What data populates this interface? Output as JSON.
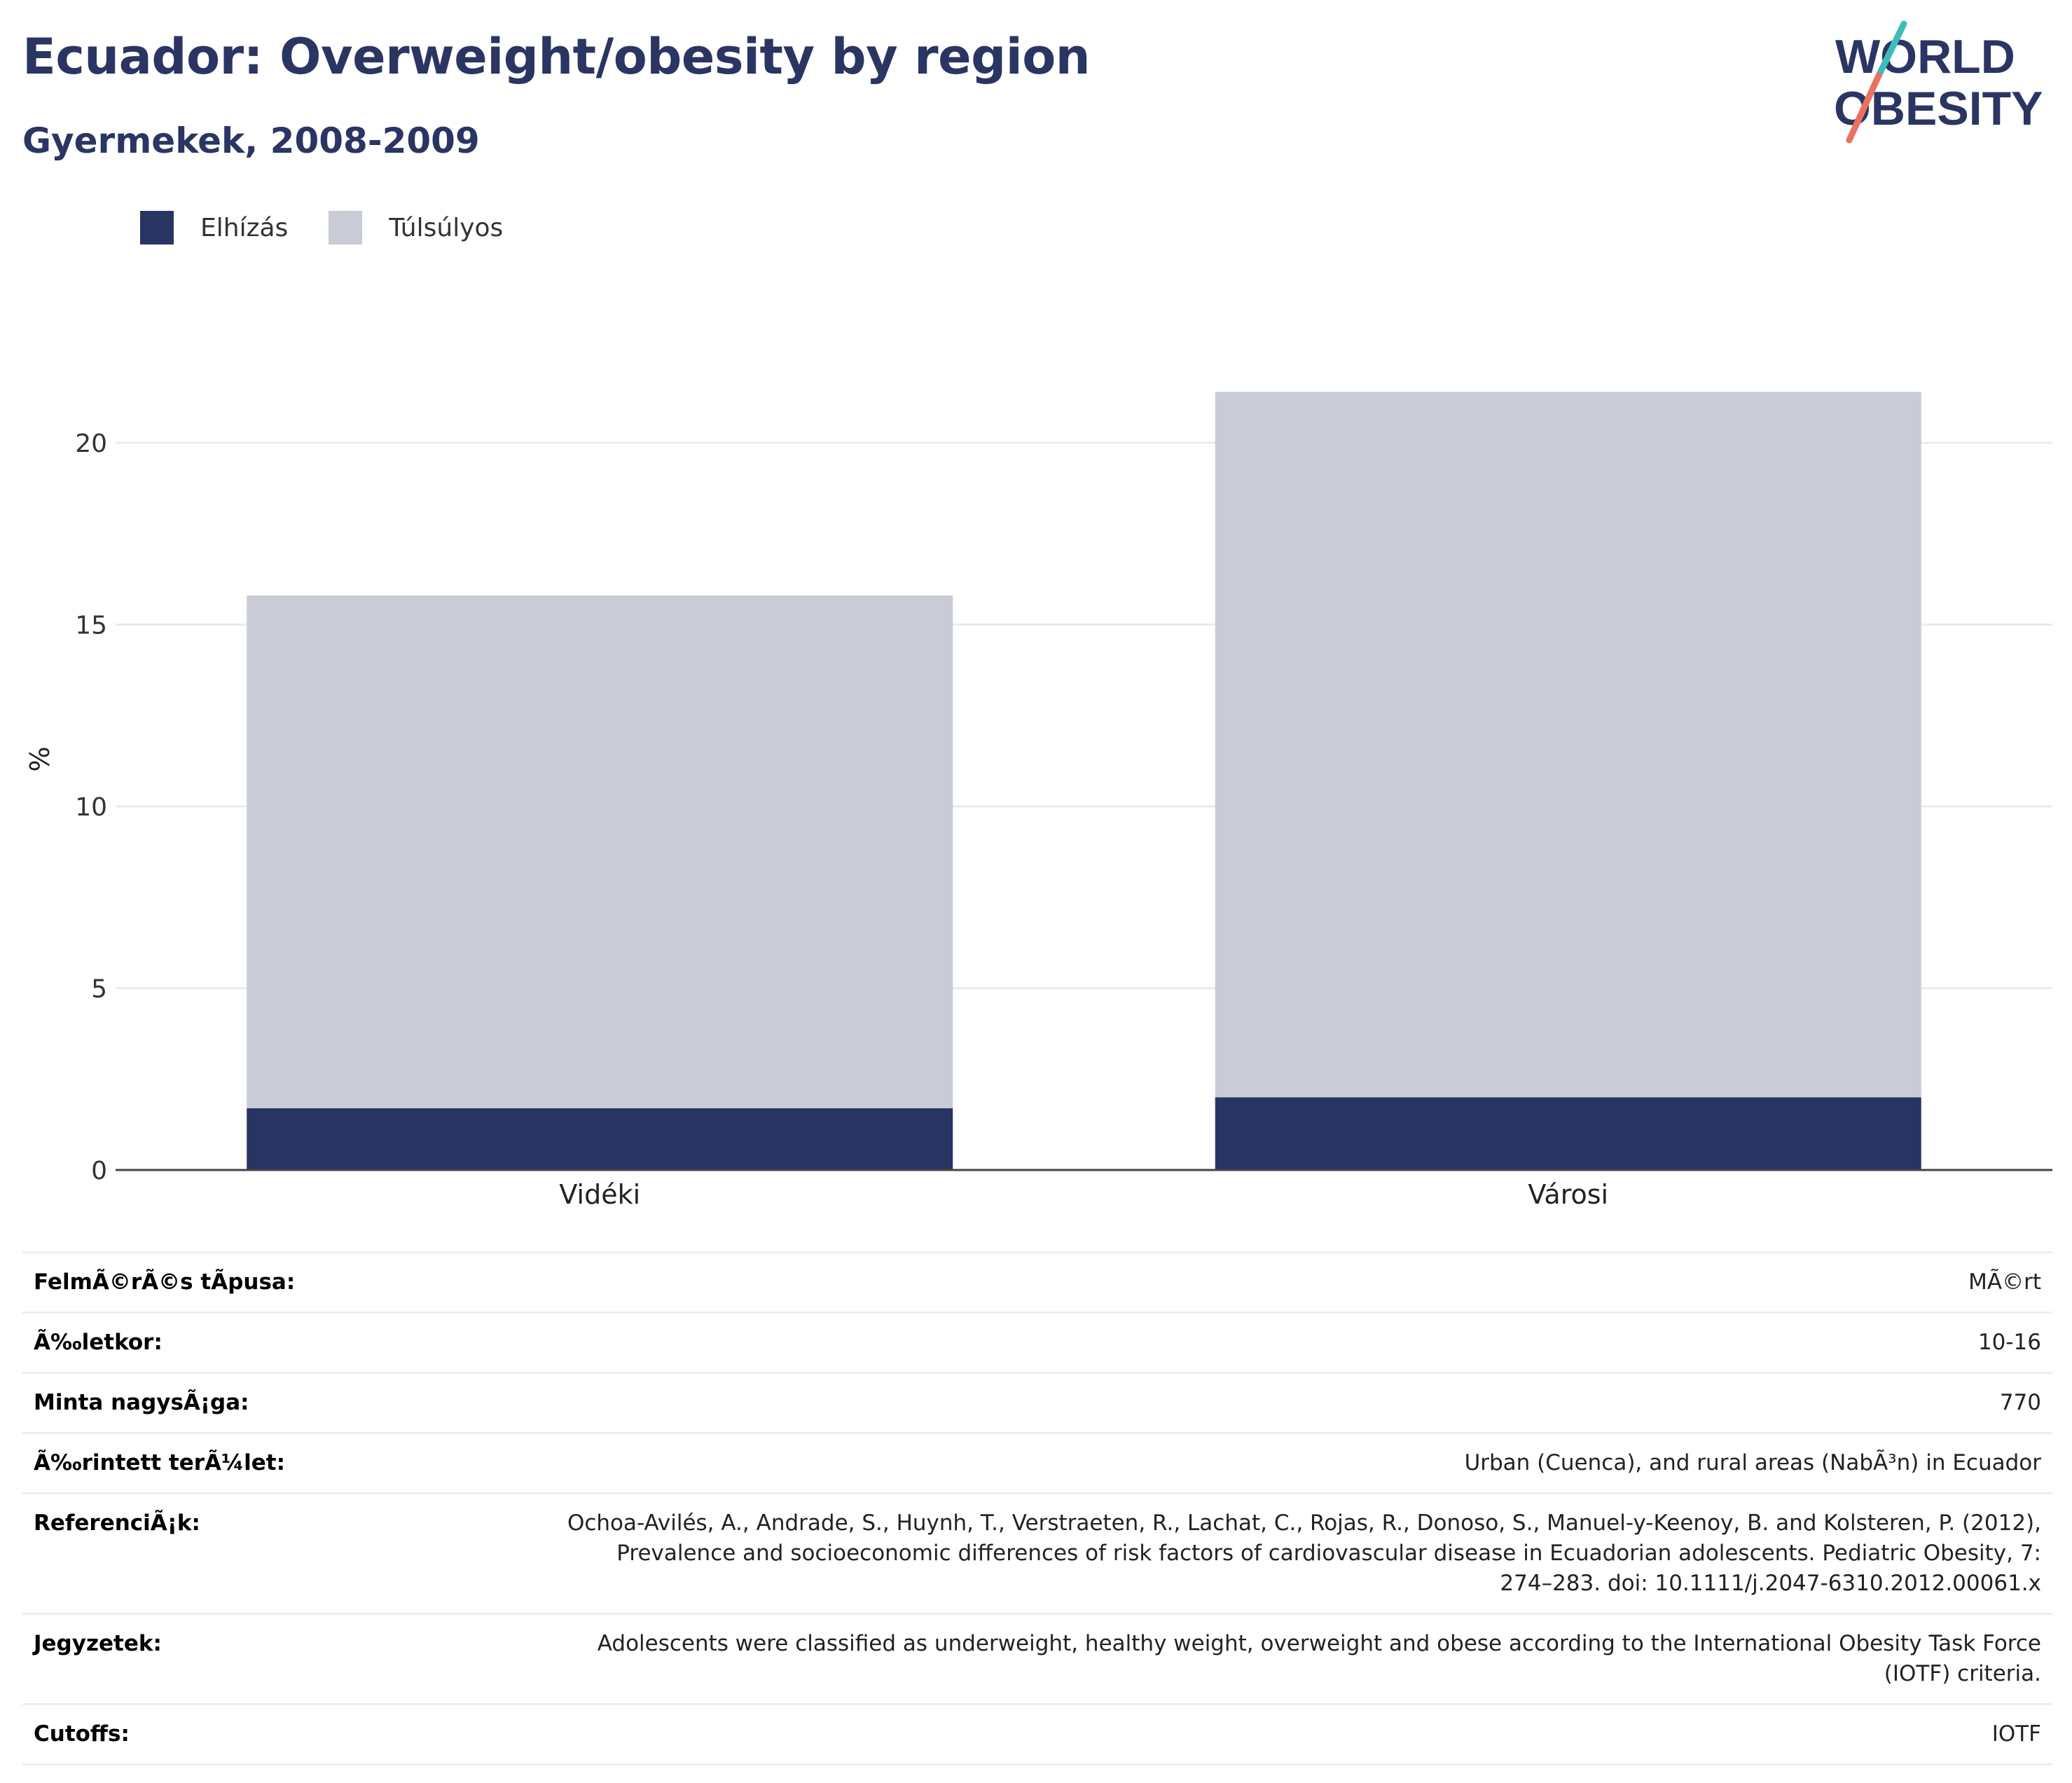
{
  "header": {
    "title": "Ecuador: Overweight/obesity by region",
    "subtitle": "Gyermekek, 2008-2009"
  },
  "logo": {
    "line1": "WORLD",
    "line2": "OBESITY"
  },
  "colors": {
    "obese": "#283562",
    "overweight": "#c9cbd7",
    "title": "#2a3563",
    "logo_teal": "#3dbdb9",
    "logo_coral": "#e8715f"
  },
  "legend": [
    {
      "label": "Elhízás",
      "color": "#283562"
    },
    {
      "label": "Túlsúlyos",
      "color": "#c9cbd7"
    }
  ],
  "chart_data": {
    "type": "bar",
    "stacked": true,
    "categories": [
      "Vidéki",
      "Városi"
    ],
    "series": [
      {
        "name": "Elhízás",
        "values": [
          1.7,
          2.0
        ]
      },
      {
        "name": "Túlsúlyos",
        "values": [
          14.1,
          19.4
        ]
      }
    ],
    "ylabel": "%",
    "yticks": [
      0,
      5,
      10,
      15,
      20
    ],
    "ylim": [
      0,
      22.6
    ],
    "grid": true,
    "legend_position": "top-left"
  },
  "meta": [
    {
      "key": "FelmÃ©rÃ©s tÃpusa:",
      "value": [
        "MÃ©rt"
      ]
    },
    {
      "key": "Ã‰letkor:",
      "value": [
        "10-16"
      ]
    },
    {
      "key": "Minta nagysÃ¡ga:",
      "value": [
        "770"
      ]
    },
    {
      "key": "Ã‰rintett terÃ¼let:",
      "value": [
        "Urban (Cuenca), and rural areas (NabÃ³n) in Ecuador"
      ]
    },
    {
      "key": "ReferenciÃ¡k:",
      "value": [
        "Ochoa-Avilés, A., Andrade, S., Huynh, T., Verstraeten, R., Lachat, C., Rojas, R., Donoso, S., Manuel-y-Keenoy, B. and Kolsteren, P. (2012),",
        "Prevalence and socioeconomic differences of risk factors of cardiovascular disease in Ecuadorian adolescents. Pediatric Obesity, 7:",
        "274–283. doi: 10.1111/j.2047-6310.2012.00061.x"
      ]
    },
    {
      "key": "Jegyzetek:",
      "value": [
        "Adolescents were classified as underweight, healthy weight, overweight and obese according to the International Obesity Task Force",
        "(IOTF) criteria."
      ]
    },
    {
      "key": "Cutoffs:",
      "value": [
        "IOTF"
      ]
    }
  ]
}
